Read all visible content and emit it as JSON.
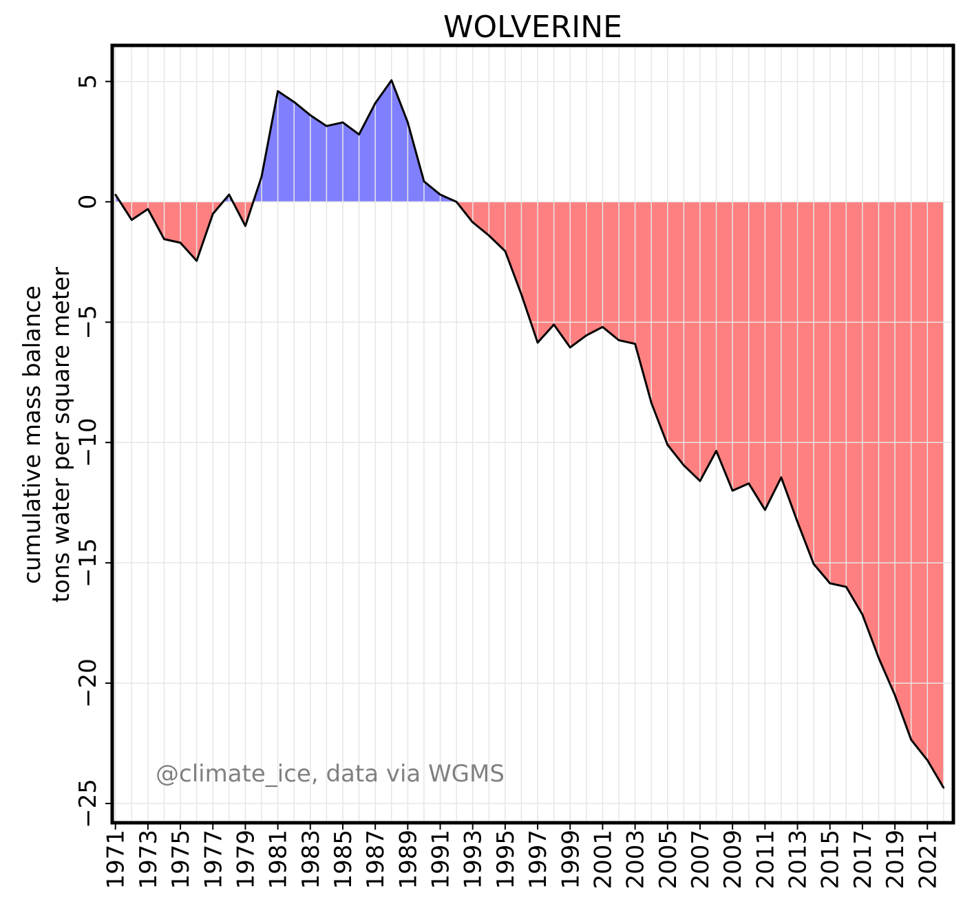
{
  "chart_data": {
    "type": "area",
    "title": "WOLVERINE",
    "ylabel_lines": [
      "cumulative mass balance",
      "tons water per square meter"
    ],
    "xlabel": "",
    "annotation": "@climate_ice, data via WGMS",
    "xlim": [
      1970.8,
      2022.6
    ],
    "ylim": [
      -25.8,
      6.5
    ],
    "yticks": [
      5,
      0,
      -5,
      -10,
      -15,
      -20,
      -25
    ],
    "ytick_labels": [
      "5",
      "0",
      "−5",
      "−10",
      "−15",
      "−20",
      "−25"
    ],
    "xticks": [
      1971,
      1973,
      1975,
      1977,
      1979,
      1981,
      1983,
      1985,
      1987,
      1989,
      1991,
      1993,
      1995,
      1997,
      1999,
      2001,
      2003,
      2005,
      2007,
      2009,
      2011,
      2013,
      2015,
      2017,
      2019,
      2021
    ],
    "xtick_labels": [
      "1971",
      "1973",
      "1975",
      "1977",
      "1979",
      "1981",
      "1983",
      "1985",
      "1987",
      "1989",
      "1991",
      "1993",
      "1995",
      "1997",
      "1999",
      "2001",
      "2003",
      "2005",
      "2007",
      "2009",
      "2011",
      "2013",
      "2015",
      "2017",
      "2019",
      "2021"
    ],
    "grid": true,
    "positive_fill": "#8080ff",
    "negative_fill": "#ff8080",
    "line_color": "#000000",
    "x": [
      1971,
      1972,
      1973,
      1974,
      1975,
      1976,
      1977,
      1978,
      1979,
      1980,
      1981,
      1982,
      1983,
      1984,
      1985,
      1986,
      1987,
      1988,
      1989,
      1990,
      1991,
      1992,
      1993,
      1994,
      1995,
      1996,
      1997,
      1998,
      1999,
      2000,
      2001,
      2002,
      2003,
      2004,
      2005,
      2006,
      2007,
      2008,
      2009,
      2010,
      2011,
      2012,
      2013,
      2014,
      2015,
      2016,
      2017,
      2018,
      2019,
      2020,
      2021,
      2022
    ],
    "y": [
      0.3,
      -0.75,
      -0.3,
      -1.55,
      -1.7,
      -2.45,
      -0.5,
      0.3,
      -1.0,
      1.05,
      4.6,
      4.15,
      3.6,
      3.15,
      3.3,
      2.8,
      4.1,
      5.05,
      3.3,
      0.85,
      0.3,
      0.0,
      -0.85,
      -1.4,
      -2.05,
      -3.85,
      -5.85,
      -5.1,
      -6.05,
      -5.55,
      -5.2,
      -5.75,
      -5.9,
      -8.35,
      -10.1,
      -10.95,
      -11.6,
      -10.35,
      -12.0,
      -11.7,
      -12.8,
      -11.45,
      -13.3,
      -15.05,
      -15.85,
      -16.0,
      -17.15,
      -18.95,
      -20.5,
      -22.35,
      -23.2,
      -24.35
    ]
  }
}
